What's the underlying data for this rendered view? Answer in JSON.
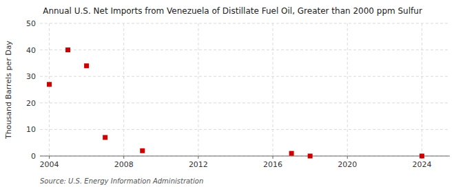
{
  "chart_data": {
    "type": "scatter",
    "title": "Annual U.S. Net Imports from Venezuela of Distillate Fuel Oil, Greater than 2000 ppm Sulfur",
    "ylabel": "Thousand Barrels per Day",
    "source": "Source: U.S. Energy Information Administration",
    "x": [
      2004,
      2005,
      2006,
      2007,
      2009,
      2017,
      2018,
      2024
    ],
    "values": [
      27,
      40,
      34,
      7,
      2,
      1,
      0,
      0
    ],
    "color": "#cc0000",
    "marker": "square",
    "xlim": [
      2003.5,
      2025.5
    ],
    "ylim": [
      0,
      50
    ],
    "xticks": [
      2004,
      2008,
      2012,
      2016,
      2020,
      2024
    ],
    "yticks": [
      0,
      10,
      20,
      30,
      40,
      50
    ],
    "grid": true
  }
}
